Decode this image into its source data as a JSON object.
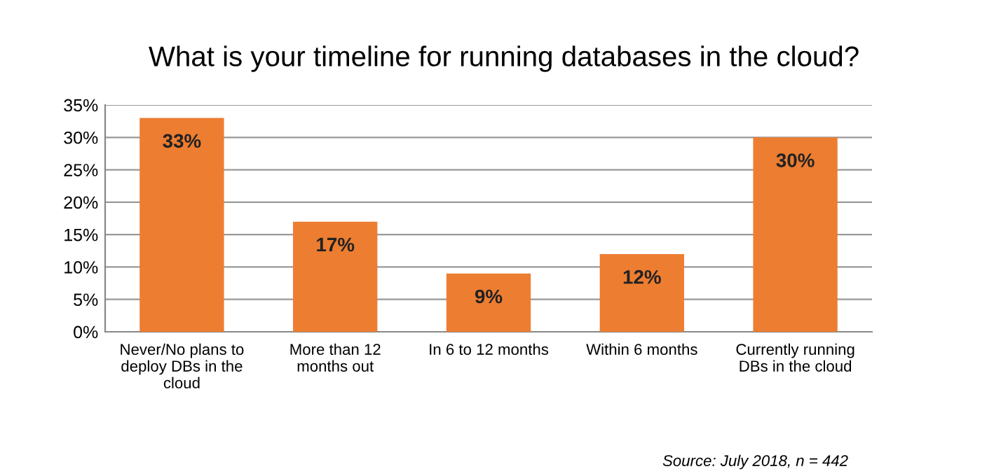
{
  "chart_data": {
    "type": "bar",
    "title": "What is your timeline for running databases in the cloud?",
    "categories": [
      "Never/No plans to\ndeploy DBs in the\ncloud",
      "More than 12\nmonths out",
      "In 6 to 12 months",
      "Within 6 months",
      "Currently running\nDBs in the cloud"
    ],
    "values": [
      33,
      17,
      9,
      12,
      30
    ],
    "color": "#ed7d31",
    "value_labels": [
      "33%",
      "17%",
      "9%",
      "12%",
      "30%"
    ],
    "ylim": [
      0,
      35
    ],
    "yticks": [
      {
        "value": 0,
        "label": "0%"
      },
      {
        "value": 5,
        "label": "5%"
      },
      {
        "value": 10,
        "label": "10%"
      },
      {
        "value": 15,
        "label": "15%"
      },
      {
        "value": 20,
        "label": "20%"
      },
      {
        "value": 25,
        "label": "25%"
      },
      {
        "value": 30,
        "label": "30%"
      },
      {
        "value": 35,
        "label": "35%"
      }
    ],
    "grid": "y",
    "annotations": [
      "Source: July 2018, n = 442"
    ]
  }
}
